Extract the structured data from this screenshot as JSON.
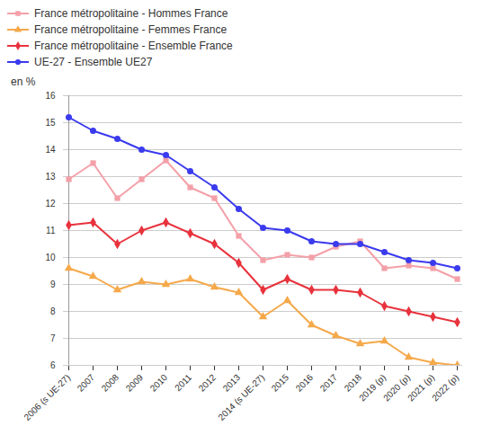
{
  "chart_data": {
    "type": "line",
    "y_label": "en %",
    "categories": [
      "2006 (s UE-27)",
      "2007",
      "2008",
      "2009",
      "2010",
      "2011",
      "2012",
      "2013",
      "2014 (s UE-27)",
      "2015",
      "2016",
      "2017",
      "2018",
      "2019 (p)",
      "2020 (p)",
      "2021 (p)",
      "2022 (p)"
    ],
    "series": [
      {
        "name": "France métropolitaine - Hommes France",
        "color": "#f4a0a8",
        "marker": "square",
        "values": [
          12.9,
          13.5,
          12.2,
          12.9,
          13.6,
          12.6,
          12.2,
          10.8,
          9.9,
          10.1,
          10.0,
          10.4,
          10.6,
          9.6,
          9.7,
          9.6,
          9.2
        ]
      },
      {
        "name": "France métropolitaine - Femmes France",
        "color": "#f5a94a",
        "marker": "triangle",
        "values": [
          9.6,
          9.3,
          8.8,
          9.1,
          9.0,
          9.2,
          8.9,
          8.7,
          7.8,
          8.4,
          7.5,
          7.1,
          6.8,
          6.9,
          6.3,
          6.1,
          6.0
        ]
      },
      {
        "name": "France métropolitaine - Ensemble France",
        "color": "#e8323c",
        "marker": "diamond",
        "values": [
          11.2,
          11.3,
          10.5,
          11.0,
          11.3,
          10.9,
          10.5,
          9.8,
          8.8,
          9.2,
          8.8,
          8.8,
          8.7,
          8.2,
          8.0,
          7.8,
          7.6
        ]
      },
      {
        "name": "UE-27 - Ensemble UE27",
        "color": "#3a3aee",
        "marker": "circle",
        "values": [
          15.2,
          14.7,
          14.4,
          14.0,
          13.8,
          13.2,
          12.6,
          11.8,
          11.1,
          11.0,
          10.6,
          10.5,
          10.5,
          10.2,
          9.9,
          9.8,
          9.6
        ]
      }
    ],
    "ylim": [
      6,
      16
    ],
    "yticks": [
      6,
      7,
      8,
      9,
      10,
      11,
      12,
      13,
      14,
      15,
      16
    ],
    "grid": true,
    "legend": "top-left"
  }
}
